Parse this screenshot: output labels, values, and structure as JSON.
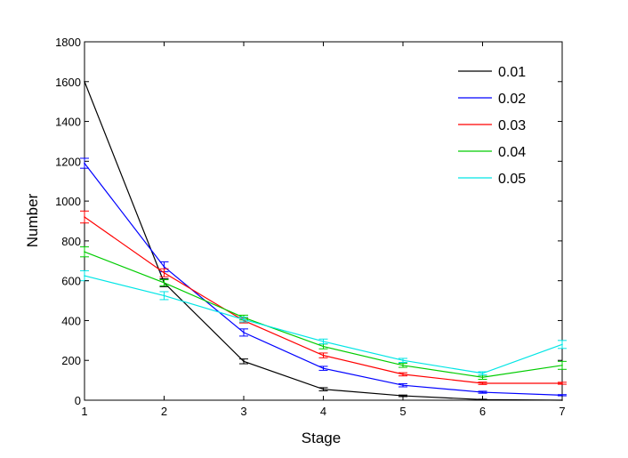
{
  "chart_data": {
    "type": "line",
    "title": "",
    "xlabel": "Stage",
    "ylabel": "Number",
    "x": [
      1,
      2,
      3,
      4,
      5,
      6,
      7
    ],
    "xlim": [
      1,
      7
    ],
    "ylim": [
      0,
      1800
    ],
    "xticks": [
      "1",
      "2",
      "3",
      "4",
      "5",
      "6",
      "7"
    ],
    "yticks": [
      "0",
      "200",
      "400",
      "600",
      "800",
      "1000",
      "1200",
      "1400",
      "1600",
      "1800"
    ],
    "grid": false,
    "legend_position": "top-right",
    "series": [
      {
        "name": "0.01",
        "color": "#000000",
        "values": [
          1600,
          590,
          195,
          55,
          22,
          3,
          0
        ],
        "errors": [
          0,
          20,
          12,
          8,
          4,
          2,
          0
        ]
      },
      {
        "name": "0.02",
        "color": "#0000ff",
        "values": [
          1190,
          670,
          340,
          160,
          75,
          40,
          25
        ],
        "errors": [
          25,
          25,
          18,
          10,
          8,
          5,
          3
        ]
      },
      {
        "name": "0.03",
        "color": "#ff0000",
        "values": [
          920,
          640,
          400,
          225,
          130,
          85,
          85
        ],
        "errors": [
          30,
          20,
          12,
          12,
          8,
          6,
          5
        ]
      },
      {
        "name": "0.04",
        "color": "#00cc00",
        "values": [
          745,
          590,
          415,
          270,
          175,
          115,
          175
        ],
        "errors": [
          25,
          15,
          12,
          12,
          10,
          10,
          20
        ]
      },
      {
        "name": "0.05",
        "color": "#00e5e5",
        "values": [
          625,
          525,
          405,
          295,
          200,
          135,
          280
        ],
        "errors": [
          25,
          20,
          12,
          12,
          10,
          8,
          20
        ]
      }
    ]
  }
}
